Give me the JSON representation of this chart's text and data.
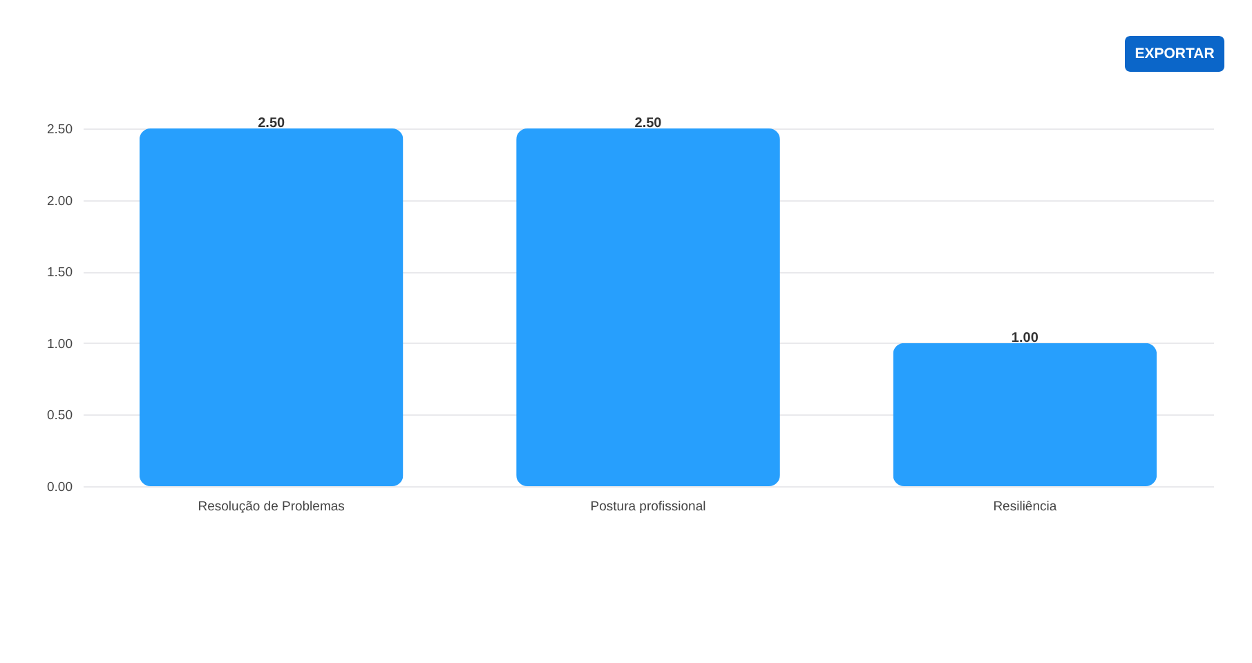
{
  "chart_data": {
    "type": "bar",
    "categories": [
      "Resolução de Problemas",
      "Postura profissional",
      "Resiliência"
    ],
    "values": [
      2.5,
      2.5,
      1.0
    ],
    "color": "#279ffd",
    "value_labels": [
      "2.50",
      "2.50",
      "1.00"
    ],
    "ylim": [
      0,
      2.5
    ],
    "yticks": [
      {
        "value": 0,
        "label": "0.00"
      },
      {
        "value": 0.5,
        "label": "0.50"
      },
      {
        "value": 1,
        "label": "1.00"
      },
      {
        "value": 1.5,
        "label": "1.50"
      },
      {
        "value": 2,
        "label": "2.00"
      },
      {
        "value": 2.5,
        "label": "2.50"
      }
    ],
    "grid": "y",
    "annotations": [
      "EXPORTAR"
    ]
  }
}
